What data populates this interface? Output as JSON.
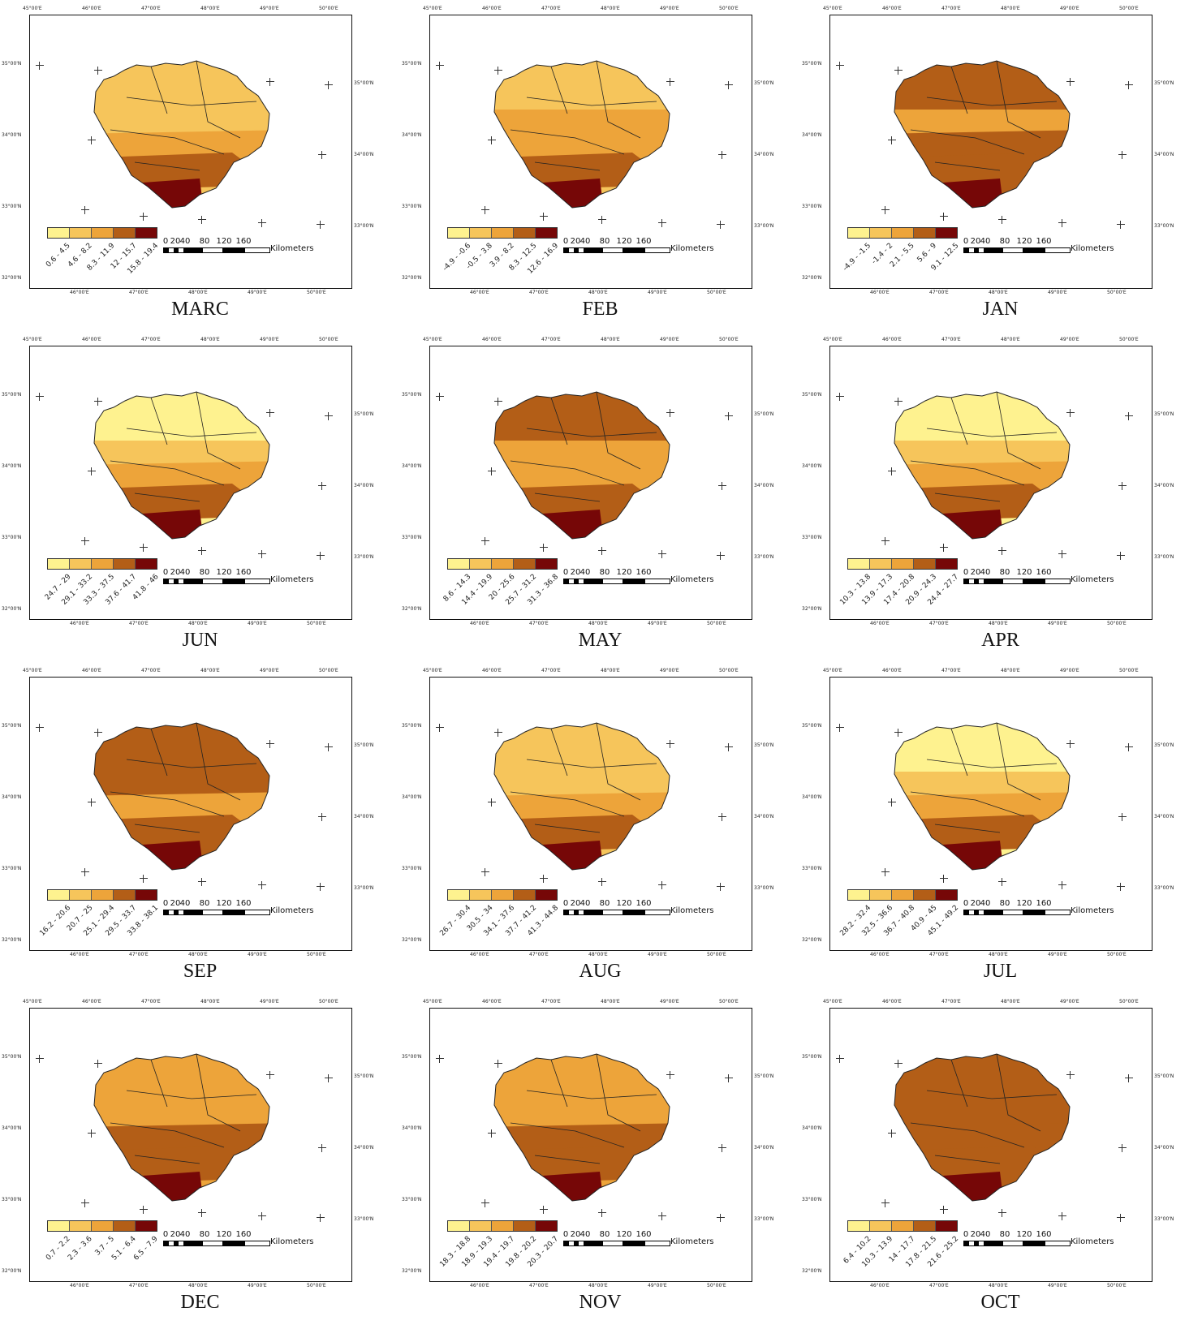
{
  "grid": {
    "top_ticks": [
      "45°00'E",
      "46°00'E",
      "47°00'E",
      "48°00'E",
      "49°00'E",
      "50°00'E"
    ],
    "bottom_ticks": [
      "46°00'E",
      "47°00'E",
      "48°00'E",
      "49°00'E",
      "50°00'E"
    ],
    "left_ticks": [
      "35°00'N",
      "34°00'N",
      "33°00'N",
      "32°00'N"
    ],
    "right_ticks": [
      "35°00'N",
      "34°00'N",
      "33°00'N"
    ]
  },
  "scale_bar": {
    "ticks": [
      "0",
      "20",
      "40",
      "80",
      "120",
      "160"
    ],
    "unit": "Kilometers"
  },
  "legend_colors": [
    "#fef28f",
    "#f6c55b",
    "#eda43a",
    "#b35e17",
    "#760707"
  ],
  "panels": [
    {
      "month": "MARC",
      "classes": [
        "0.6 - 4.5",
        "4.6 - 8.2",
        "8.3 - 11.9",
        "12 - 15.7",
        "15.8 - 19.4"
      ],
      "levels": [
        2,
        2,
        3,
        4,
        5
      ]
    },
    {
      "month": "FEB",
      "classes": [
        "-4.9 - -0.6",
        "-0.5 - 3.8",
        "3.9 - 8.2",
        "8.3 - 12.5",
        "12.6 - 16.9"
      ],
      "levels": [
        2,
        3,
        3,
        4,
        5
      ]
    },
    {
      "month": "JAN",
      "classes": [
        "-4.9 - -1.5",
        "-1.4 - 2",
        "2.1 - 5.5",
        "5.6 - 9",
        "9.1 - 12.5"
      ],
      "levels": [
        4,
        3,
        4,
        4,
        5
      ]
    },
    {
      "month": "JUN",
      "classes": [
        "24.7 - 29",
        "29.1 - 33.2",
        "33.3 - 37.5",
        "37.6 - 41.7",
        "41.8 - 46"
      ],
      "levels": [
        1,
        2,
        3,
        4,
        5
      ]
    },
    {
      "month": "MAY",
      "classes": [
        "8.6 - 14.3",
        "14.4 - 19.9",
        "20 - 25.6",
        "25.7 - 31.2",
        "31.3 - 36.8"
      ],
      "levels": [
        4,
        3,
        3,
        4,
        5
      ]
    },
    {
      "month": "APR",
      "classes": [
        "10.3 - 13.8",
        "13.9 - 17.3",
        "17.4 - 20.8",
        "20.9 - 24.3",
        "24.4 - 27.7"
      ],
      "levels": [
        1,
        2,
        3,
        4,
        5
      ]
    },
    {
      "month": "SEP",
      "classes": [
        "16.2 - 20.6",
        "20.7 - 25",
        "25.1 - 29.4",
        "29.5 - 33.7",
        "33.8 - 38.1"
      ],
      "levels": [
        4,
        4,
        3,
        4,
        5
      ]
    },
    {
      "month": "AUG",
      "classes": [
        "26.7 - 30.4",
        "30.5 - 34",
        "34.1 - 37.6",
        "37.7 - 41.2",
        "41.3 - 44.8"
      ],
      "levels": [
        2,
        2,
        3,
        4,
        5
      ]
    },
    {
      "month": "JUL",
      "classes": [
        "28.2 - 32.4",
        "32.5 - 36.6",
        "36.7 - 40.8",
        "40.9 - 45",
        "45.1 - 49.2"
      ],
      "levels": [
        1,
        2,
        3,
        4,
        5
      ]
    },
    {
      "month": "DEC",
      "classes": [
        "0.7 - 2.2",
        "2.3 - 3.6",
        "3.7 - 5",
        "5.1 - 6.4",
        "6.5 - 7.9"
      ],
      "levels": [
        3,
        3,
        4,
        4,
        5
      ]
    },
    {
      "month": "NOV",
      "classes": [
        "18.3 - 18.8",
        "18.9 - 19.3",
        "19.4 - 19.7",
        "19.8 - 20.2",
        "20.3 - 20.7"
      ],
      "levels": [
        3,
        3,
        4,
        4,
        5
      ]
    },
    {
      "month": "OCT",
      "classes": [
        "6.4 - 10.2",
        "10.3 - 13.9",
        "14 - 17.7",
        "17.8 - 21.5",
        "21.6 - 25.2"
      ],
      "levels": [
        4,
        4,
        4,
        4,
        5
      ]
    }
  ]
}
